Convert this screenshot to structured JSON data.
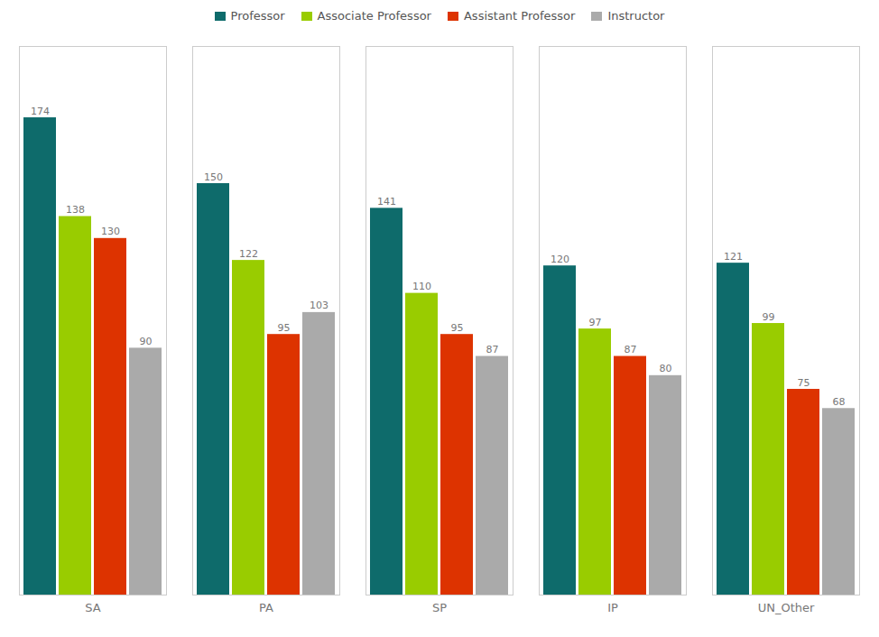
{
  "chart_data": {
    "type": "bar",
    "categories": [
      "SA",
      "PA",
      "SP",
      "IP",
      "UN_Other"
    ],
    "series": [
      {
        "name": "Professor",
        "color": "#0e6b6b",
        "values": [
          174,
          150,
          141,
          120,
          121
        ]
      },
      {
        "name": "Associate Professor",
        "color": "#99cc00",
        "values": [
          138,
          122,
          110,
          97,
          99
        ]
      },
      {
        "name": "Assistant Professor",
        "color": "#dd3300",
        "values": [
          130,
          95,
          95,
          87,
          75
        ]
      },
      {
        "name": "Instructor",
        "color": "#aaaaaa",
        "values": [
          90,
          103,
          87,
          80,
          68
        ]
      }
    ],
    "ylim": [
      0,
      200
    ],
    "data_labels": true,
    "tick_labels": "x",
    "grid": false,
    "legend": "top"
  }
}
